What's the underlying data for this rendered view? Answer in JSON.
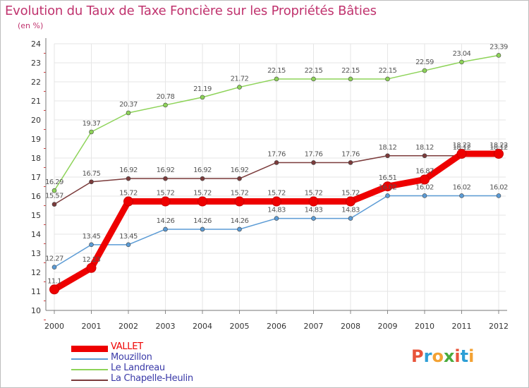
{
  "title": "Evolution du Taux de Taxe Foncière sur les Propriétés Bâties",
  "subtitle": "(en %)",
  "logo": {
    "letters": [
      "P",
      "r",
      "o",
      "x",
      "i",
      "t",
      "i"
    ],
    "colors": [
      "#e8543a",
      "#2e9fd6",
      "#f3a233",
      "#4aab3d",
      "#e8543a",
      "#2e9fd6",
      "#f3a233"
    ]
  },
  "chart_data": {
    "type": "line",
    "title": "Evolution du Taux de Taxe Foncière sur les Propriétés Bâties",
    "ylabel": "(en %)",
    "xlabel": "",
    "x": [
      "2000",
      "2001",
      "2002",
      "2003",
      "2004",
      "2005",
      "2006",
      "2007",
      "2008",
      "2009",
      "2010",
      "2011",
      "2012"
    ],
    "ylim": [
      10,
      24
    ],
    "yticks": [
      "10",
      "11",
      "12",
      "13",
      "14",
      "15",
      "16",
      "17",
      "18",
      "19",
      "20",
      "21",
      "22",
      "23",
      "24"
    ],
    "series": [
      {
        "name": "VALLET",
        "color": "#ee0000",
        "thick": true,
        "values": [
          11.1,
          12.23,
          15.72,
          15.72,
          15.72,
          15.72,
          15.72,
          15.72,
          15.72,
          16.51,
          16.87,
          18.22,
          18.22
        ],
        "labels": [
          "11.1",
          "12.23",
          "15.72",
          "15.72",
          "15.72",
          "15.72",
          "15.72",
          "15.72",
          "15.72",
          "16.51",
          "16.87",
          "18.22",
          "18.22"
        ]
      },
      {
        "name": "Mouzillon",
        "color": "#5b9bd5",
        "thick": false,
        "values": [
          12.27,
          13.45,
          13.45,
          14.26,
          14.26,
          14.26,
          14.83,
          14.83,
          14.83,
          16.02,
          16.02,
          16.02,
          16.02
        ],
        "labels": [
          "12.27",
          "13.45",
          "13.45",
          "14.26",
          "14.26",
          "14.26",
          "14.83",
          "14.83",
          "14.83",
          "16.02",
          "16.02",
          "16.02",
          "16.02"
        ]
      },
      {
        "name": "Le Landreau",
        "color": "#8dd358",
        "thick": false,
        "values": [
          16.29,
          19.37,
          20.37,
          20.78,
          21.19,
          21.72,
          22.15,
          22.15,
          22.15,
          22.15,
          22.59,
          23.04,
          23.39
        ],
        "labels": [
          "16.29",
          "19.37",
          "20.37",
          "20.78",
          "21.19",
          "21.72",
          "22.15",
          "22.15",
          "22.15",
          "22.15",
          "22.59",
          "23.04",
          "23.39"
        ]
      },
      {
        "name": "La Chapelle-Heulin",
        "color": "#7b3b3b",
        "thick": false,
        "values": [
          15.57,
          16.75,
          16.92,
          16.92,
          16.92,
          16.92,
          17.76,
          17.76,
          17.76,
          18.12,
          18.12,
          18.12,
          18.12
        ],
        "labels": [
          "15.57",
          "16.75",
          "16.92",
          "16.92",
          "16.92",
          "16.92",
          "17.76",
          "17.76",
          "17.76",
          "18.12",
          "18.12",
          "18.12",
          "18.12"
        ]
      }
    ],
    "legend": "bottom-left",
    "grid": true
  }
}
